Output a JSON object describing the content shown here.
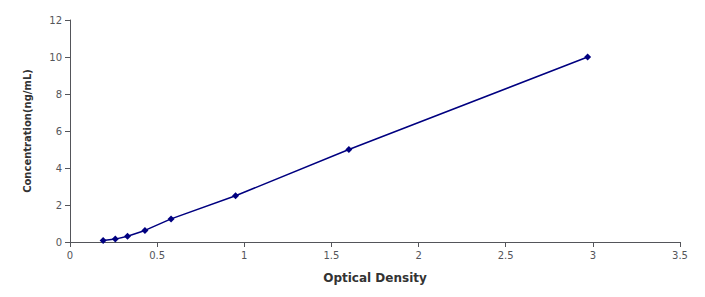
{
  "chart_data": {
    "type": "line",
    "x": [
      0.19,
      0.26,
      0.33,
      0.43,
      0.58,
      0.95,
      1.6,
      2.97
    ],
    "values": [
      0.078,
      0.156,
      0.313,
      0.625,
      1.25,
      2.5,
      5.0,
      10.0
    ],
    "xlabel": "Optical Density",
    "ylabel": "Concentration(ng/mL)",
    "xlim": [
      0,
      3.5
    ],
    "ylim": [
      0,
      12
    ],
    "xticks": [
      0,
      0.5,
      1,
      1.5,
      2,
      2.5,
      3,
      3.5
    ],
    "yticks": [
      0,
      2,
      4,
      6,
      8,
      10,
      12
    ],
    "color": "#000080",
    "marker": "diamond",
    "line_style": "solid",
    "grid": false
  }
}
